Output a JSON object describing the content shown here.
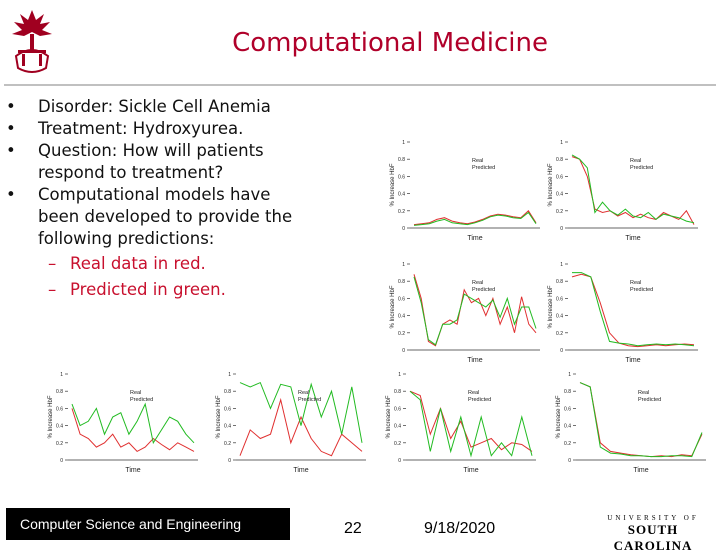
{
  "title": "Computational Medicine",
  "bullets": [
    {
      "text": "Disorder: Sickle Cell Anemia"
    },
    {
      "text": "Treatment: Hydroxyurea."
    },
    {
      "text": "Question: How will patients respond to treatment?"
    },
    {
      "text": "Computational models have been developed to provide the following predictions:"
    }
  ],
  "subbullets": [
    "Real data in red.",
    "Predicted in green."
  ],
  "footer": {
    "course": "Computer Science and Engineering",
    "page": "22",
    "date": "9/18/2020",
    "logo_top": "UNIVERSITY OF",
    "logo_bottom": "SOUTH CAROLINA"
  },
  "colors": {
    "title": "#b0002a",
    "real": "#e03030",
    "predicted": "#22bb22"
  },
  "chart_data": [
    {
      "type": "line",
      "xlabel": "Time",
      "ylabel": "% Increase HbF",
      "legend": [
        "Real",
        "Predicted"
      ],
      "ylim": [
        0,
        1
      ],
      "yticks": [
        "0",
        "0.2",
        "0.4",
        "0.6",
        "0.8",
        "1"
      ],
      "series": [
        {
          "name": "Real",
          "values": [
            0.04,
            0.05,
            0.06,
            0.1,
            0.12,
            0.08,
            0.06,
            0.05,
            0.07,
            0.1,
            0.14,
            0.16,
            0.15,
            0.13,
            0.12,
            0.2,
            0.06
          ]
        },
        {
          "name": "Predicted",
          "values": [
            0.03,
            0.04,
            0.05,
            0.08,
            0.1,
            0.06,
            0.05,
            0.04,
            0.06,
            0.09,
            0.13,
            0.15,
            0.14,
            0.12,
            0.11,
            0.18,
            0.05
          ]
        }
      ]
    },
    {
      "type": "line",
      "xlabel": "Time",
      "ylabel": "% Increase HbF",
      "legend": [
        "Real",
        "Predicted"
      ],
      "ylim": [
        0,
        1
      ],
      "yticks": [
        "0",
        "0.2",
        "0.4",
        "0.6",
        "0.8",
        "1"
      ],
      "series": [
        {
          "name": "Real",
          "values": [
            0.83,
            0.8,
            0.6,
            0.22,
            0.18,
            0.2,
            0.14,
            0.18,
            0.12,
            0.16,
            0.12,
            0.1,
            0.18,
            0.14,
            0.1,
            0.2,
            0.04
          ]
        },
        {
          "name": "Predicted",
          "values": [
            0.85,
            0.8,
            0.7,
            0.18,
            0.3,
            0.2,
            0.15,
            0.22,
            0.14,
            0.12,
            0.18,
            0.1,
            0.16,
            0.14,
            0.12,
            0.08,
            0.06
          ]
        }
      ]
    },
    {
      "type": "line",
      "xlabel": "Time",
      "ylabel": "% Increase HbF",
      "legend": [
        "Real",
        "Predicted"
      ],
      "ylim": [
        0,
        1
      ],
      "yticks": [
        "0",
        "0.2",
        "0.4",
        "0.6",
        "0.8",
        "1"
      ],
      "series": [
        {
          "name": "Real",
          "values": [
            0.88,
            0.6,
            0.1,
            0.05,
            0.3,
            0.35,
            0.3,
            0.7,
            0.55,
            0.6,
            0.4,
            0.6,
            0.3,
            0.5,
            0.2,
            0.62,
            0.3,
            0.2
          ]
        },
        {
          "name": "Predicted",
          "values": [
            0.85,
            0.55,
            0.12,
            0.06,
            0.3,
            0.3,
            0.35,
            0.65,
            0.6,
            0.55,
            0.5,
            0.58,
            0.38,
            0.6,
            0.3,
            0.5,
            0.5,
            0.25
          ]
        }
      ]
    },
    {
      "type": "line",
      "xlabel": "Time",
      "ylabel": "% Increase HbF",
      "legend": [
        "Real",
        "Predicted"
      ],
      "ylim": [
        0,
        1
      ],
      "yticks": [
        "0",
        "0.2",
        "0.4",
        "0.6",
        "0.8",
        "1"
      ],
      "series": [
        {
          "name": "Real",
          "values": [
            0.85,
            0.88,
            0.85,
            0.55,
            0.2,
            0.08,
            0.05,
            0.04,
            0.05,
            0.06,
            0.05,
            0.06,
            0.07,
            0.06
          ]
        },
        {
          "name": "Predicted",
          "values": [
            0.9,
            0.9,
            0.85,
            0.45,
            0.1,
            0.08,
            0.07,
            0.05,
            0.06,
            0.07,
            0.06,
            0.07,
            0.06,
            0.05
          ]
        }
      ]
    },
    {
      "type": "line",
      "xlabel": "Time",
      "ylabel": "% Increase HbF",
      "legend": [
        "Real",
        "Predicted"
      ],
      "ylim": [
        0,
        1
      ],
      "yticks": [
        "0",
        "0.2",
        "0.4",
        "0.6",
        "0.8",
        "1"
      ],
      "series": [
        {
          "name": "Real",
          "values": [
            0.6,
            0.3,
            0.25,
            0.15,
            0.2,
            0.3,
            0.15,
            0.2,
            0.1,
            0.15,
            0.25,
            0.18,
            0.12,
            0.2,
            0.15,
            0.1
          ]
        },
        {
          "name": "Predicted",
          "values": [
            0.65,
            0.4,
            0.45,
            0.6,
            0.3,
            0.5,
            0.55,
            0.3,
            0.45,
            0.65,
            0.2,
            0.35,
            0.5,
            0.45,
            0.3,
            0.2
          ]
        }
      ]
    },
    {
      "type": "line",
      "xlabel": "Time",
      "ylabel": "% Increase HbF",
      "legend": [
        "Real",
        "Predicted"
      ],
      "ylim": [
        0,
        1
      ],
      "yticks": [
        "0",
        "0.2",
        "0.4",
        "0.6",
        "0.8",
        "1"
      ],
      "series": [
        {
          "name": "Real",
          "values": [
            0.05,
            0.35,
            0.25,
            0.3,
            0.7,
            0.2,
            0.5,
            0.25,
            0.1,
            0.05,
            0.3,
            0.2,
            0.1
          ]
        },
        {
          "name": "Predicted",
          "values": [
            0.9,
            0.85,
            0.9,
            0.6,
            0.88,
            0.85,
            0.4,
            0.88,
            0.5,
            0.8,
            0.3,
            0.85,
            0.2
          ]
        }
      ]
    },
    {
      "type": "line",
      "xlabel": "Time",
      "ylabel": "% Increase HbF",
      "legend": [
        "Real",
        "Predicted"
      ],
      "ylim": [
        0,
        1
      ],
      "yticks": [
        "0",
        "0.2",
        "0.4",
        "0.6",
        "0.8",
        "1"
      ],
      "series": [
        {
          "name": "Real",
          "values": [
            0.8,
            0.75,
            0.3,
            0.6,
            0.25,
            0.45,
            0.15,
            0.2,
            0.25,
            0.12,
            0.2,
            0.18,
            0.1
          ]
        },
        {
          "name": "Predicted",
          "values": [
            0.8,
            0.7,
            0.1,
            0.6,
            0.1,
            0.5,
            0.05,
            0.5,
            0.05,
            0.2,
            0.05,
            0.5,
            0.05
          ]
        }
      ]
    },
    {
      "type": "line",
      "xlabel": "Time",
      "ylabel": "% Increase HbF",
      "legend": [
        "Real",
        "Predicted"
      ],
      "ylim": [
        0,
        1
      ],
      "yticks": [
        "0",
        "0.2",
        "0.4",
        "0.6",
        "0.8",
        "1"
      ],
      "series": [
        {
          "name": "Real",
          "values": [
            0.9,
            0.85,
            0.2,
            0.1,
            0.08,
            0.06,
            0.05,
            0.04,
            0.05,
            0.04,
            0.06,
            0.05,
            0.3
          ]
        },
        {
          "name": "Predicted",
          "values": [
            0.9,
            0.85,
            0.15,
            0.08,
            0.07,
            0.05,
            0.05,
            0.04,
            0.04,
            0.05,
            0.05,
            0.04,
            0.32
          ]
        }
      ]
    }
  ]
}
